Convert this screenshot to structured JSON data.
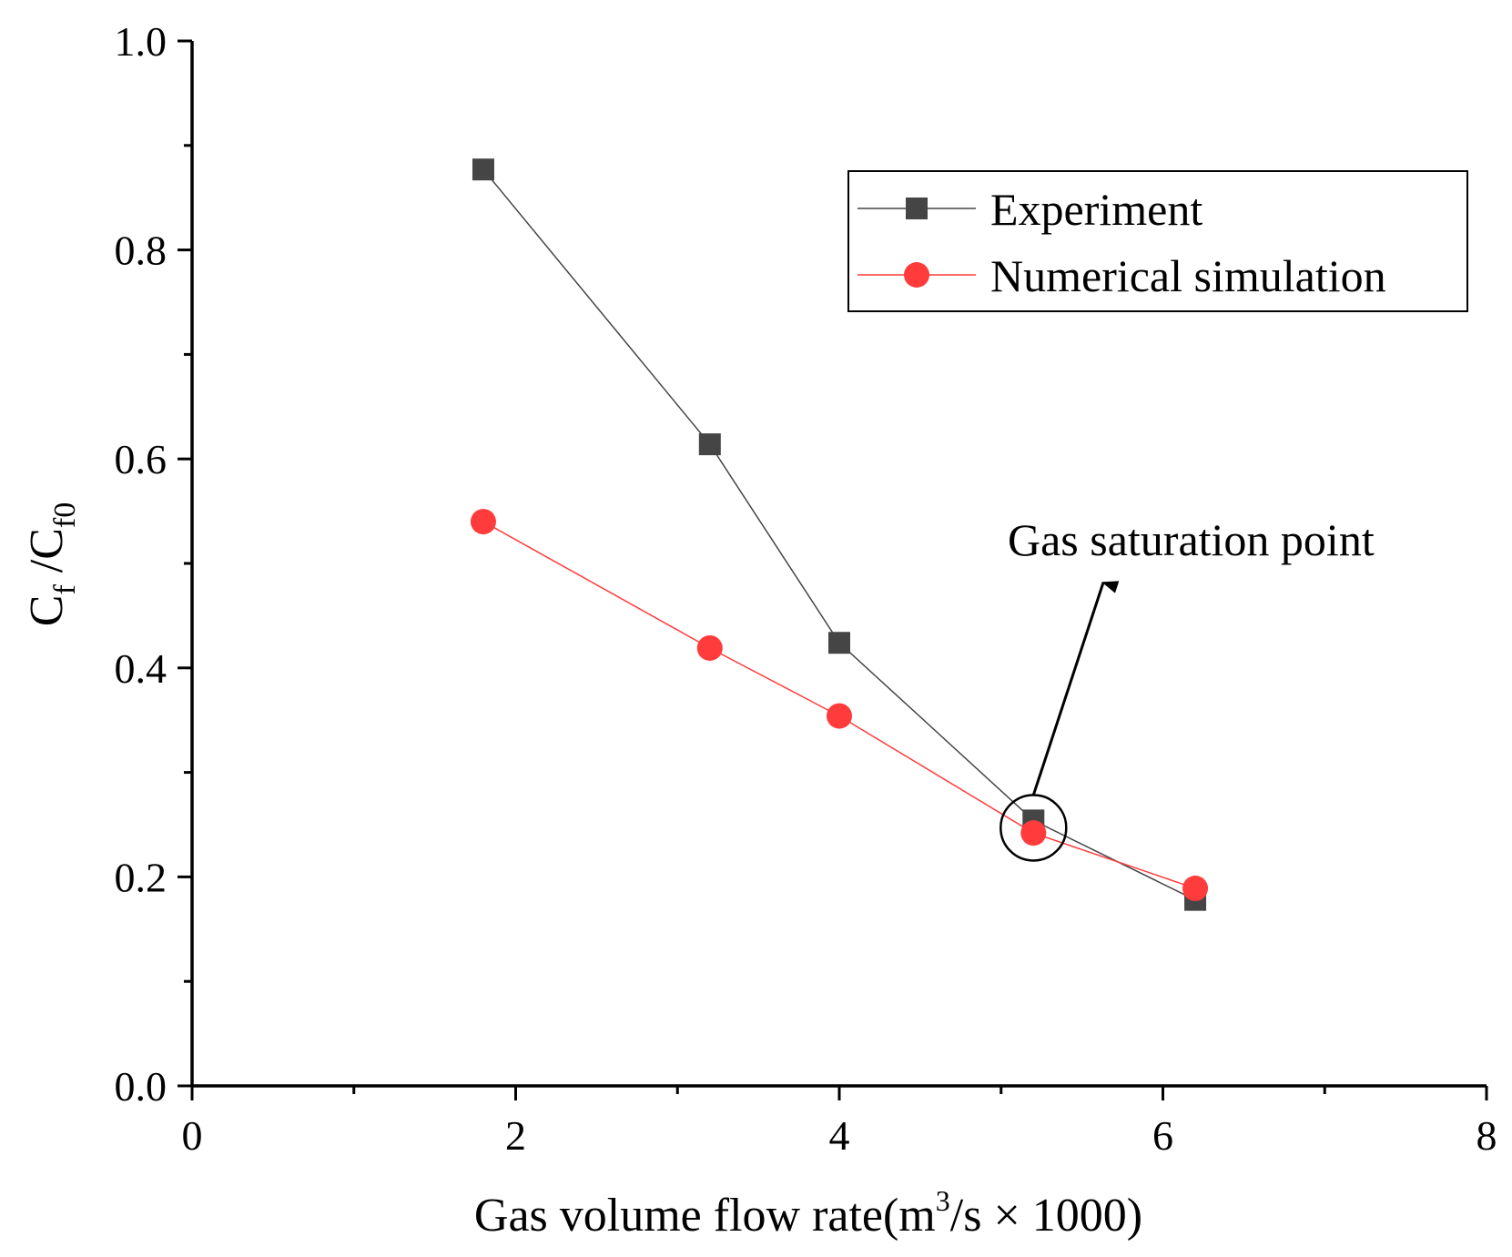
{
  "chart_data": {
    "type": "line",
    "xlabel_main": "Gas volume flow rate(m",
    "xlabel_sup": "3",
    "xlabel_rest": "/s × 1000)",
    "ylabel_c1": "C",
    "ylabel_sub1": "f",
    "ylabel_sep": " /C",
    "ylabel_sub2": "f0",
    "xlim": [
      0,
      8
    ],
    "ylim": [
      0.0,
      1.0
    ],
    "xticks": [
      0,
      2,
      4,
      6,
      8
    ],
    "xtick_labels": [
      "0",
      "2",
      "4",
      "6",
      "8"
    ],
    "xminor": [
      1,
      3,
      5,
      7
    ],
    "yticks": [
      0.0,
      0.2,
      0.4,
      0.6,
      0.8,
      1.0
    ],
    "ytick_labels": [
      "0.0",
      "0.2",
      "0.4",
      "0.6",
      "0.8",
      "1.0"
    ],
    "yminor": [
      0.1,
      0.3,
      0.5,
      0.7,
      0.9
    ],
    "grid": false,
    "legend_position": "top-right",
    "series": [
      {
        "name": "Experiment",
        "marker": "square",
        "color": "#454545",
        "x": [
          1.8,
          3.2,
          4.0,
          5.2,
          6.2
        ],
        "y": [
          0.877,
          0.614,
          0.424,
          0.254,
          0.178
        ]
      },
      {
        "name": "Numerical simulation",
        "marker": "circle",
        "color": "#ff3b3b",
        "x": [
          1.8,
          3.2,
          4.0,
          5.2,
          6.2
        ],
        "y": [
          0.54,
          0.419,
          0.354,
          0.242,
          0.189
        ]
      }
    ],
    "annotation": {
      "text": "Gas saturation point",
      "target_x": 5.2,
      "target_y": 0.247
    }
  }
}
